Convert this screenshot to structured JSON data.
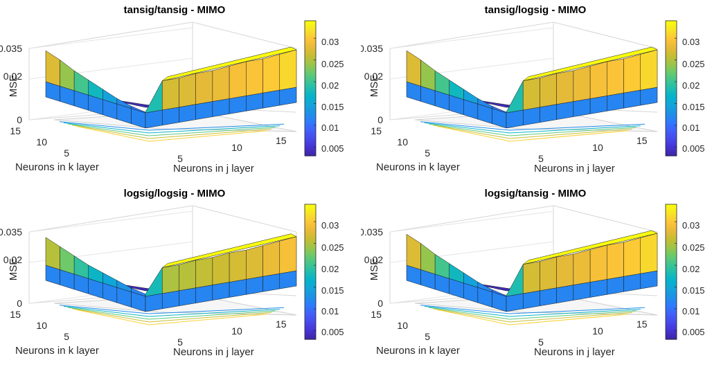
{
  "chart_data": [
    {
      "type": "surface",
      "title": "tansig/tansig - MIMO",
      "xlabel": "Neurons in j layer",
      "ylabel": "Neurons in k layer",
      "zlabel": "MSE",
      "xticks": [
        "5",
        "10",
        "15"
      ],
      "yticks": [
        "5",
        "10",
        "15"
      ],
      "zticks": [
        "0",
        "0.02",
        "0.035"
      ],
      "xlim": [
        1,
        15
      ],
      "ylim": [
        1,
        15
      ],
      "zlim": [
        0,
        0.035
      ],
      "colorbar_ticks": [
        "0.005",
        "0.01",
        "0.015",
        "0.02",
        "0.025",
        "0.03"
      ],
      "clim": [
        0.003,
        0.034
      ],
      "colormap": "parula",
      "contour_projection": true,
      "front_row_mse": [
        0.029,
        0.026,
        0.022,
        0.019,
        0.016,
        0.013,
        0.011,
        0.01,
        0.027,
        0.027,
        0.028,
        0.028,
        0.029,
        0.03,
        0.03,
        0.031,
        0.032
      ],
      "min_mse": 0.004
    },
    {
      "type": "surface",
      "title": "tansig/logsig - MIMO",
      "xlabel": "Neurons in j layer",
      "ylabel": "Neurons in k layer",
      "zlabel": "MSE",
      "xticks": [
        "5",
        "10",
        "15"
      ],
      "yticks": [
        "5",
        "10",
        "15"
      ],
      "zticks": [
        "0",
        "0.02",
        "0.035"
      ],
      "xlim": [
        1,
        15
      ],
      "ylim": [
        1,
        15
      ],
      "zlim": [
        0,
        0.035
      ],
      "colorbar_ticks": [
        "0.005",
        "0.01",
        "0.015",
        "0.02",
        "0.025",
        "0.03"
      ],
      "clim": [
        0.003,
        0.034
      ],
      "colormap": "parula",
      "contour_projection": true,
      "front_row_mse": [
        0.029,
        0.026,
        0.022,
        0.019,
        0.016,
        0.013,
        0.011,
        0.01,
        0.027,
        0.027,
        0.028,
        0.028,
        0.029,
        0.03,
        0.03,
        0.031,
        0.032
      ],
      "min_mse": 0.004
    },
    {
      "type": "surface",
      "title": "logsig/logsig - MIMO",
      "xlabel": "Neurons in j layer",
      "ylabel": "Neurons in k layer",
      "zlabel": "MSE",
      "xticks": [
        "5",
        "10",
        "15"
      ],
      "yticks": [
        "5",
        "10",
        "15"
      ],
      "zticks": [
        "0",
        "0.02",
        "0.035"
      ],
      "xlim": [
        1,
        15
      ],
      "ylim": [
        1,
        15
      ],
      "zlim": [
        0,
        0.035
      ],
      "colorbar_ticks": [
        "0.005",
        "0.01",
        "0.015",
        "0.02",
        "0.025",
        "0.03"
      ],
      "clim": [
        0.003,
        0.034
      ],
      "colormap": "parula",
      "contour_projection": true,
      "front_row_mse": [
        0.027,
        0.024,
        0.021,
        0.018,
        0.016,
        0.014,
        0.012,
        0.011,
        0.025,
        0.025,
        0.026,
        0.026,
        0.027,
        0.027,
        0.028,
        0.029,
        0.03
      ],
      "min_mse": 0.004
    },
    {
      "type": "surface",
      "title": "logsig/tansig - MIMO",
      "xlabel": "Neurons in j layer",
      "ylabel": "Neurons in k layer",
      "zlabel": "MSE",
      "xticks": [
        "5",
        "10",
        "15"
      ],
      "yticks": [
        "5",
        "10",
        "15"
      ],
      "zticks": [
        "0",
        "0.02",
        "0.035"
      ],
      "xlim": [
        1,
        15
      ],
      "ylim": [
        1,
        15
      ],
      "zlim": [
        0,
        0.035
      ],
      "colorbar_ticks": [
        "0.005",
        "0.01",
        "0.015",
        "0.02",
        "0.025",
        "0.03"
      ],
      "clim": [
        0.003,
        0.034
      ],
      "colormap": "parula",
      "contour_projection": true,
      "front_row_mse": [
        0.029,
        0.026,
        0.022,
        0.019,
        0.016,
        0.013,
        0.011,
        0.01,
        0.027,
        0.027,
        0.028,
        0.028,
        0.029,
        0.03,
        0.03,
        0.031,
        0.032
      ],
      "min_mse": 0.004
    }
  ]
}
